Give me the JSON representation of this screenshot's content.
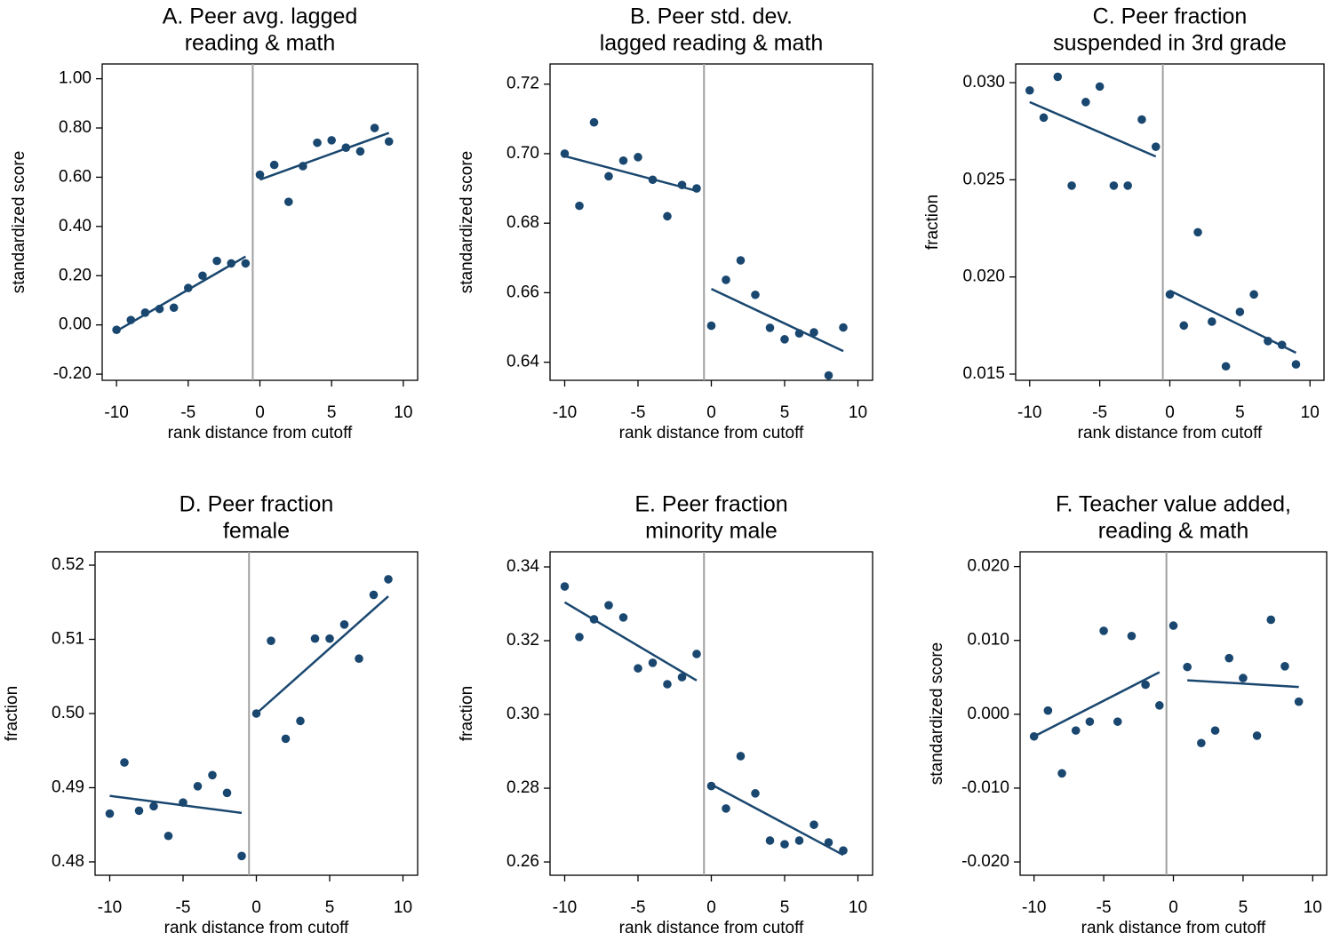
{
  "chart_data": [
    {
      "type": "scatter",
      "title": [
        "A. Peer avg. lagged",
        "reading & math"
      ],
      "xlabel": "rank distance from cutoff",
      "ylabel": "standardized score",
      "x": [
        -10,
        -9,
        -8,
        -7,
        -6,
        -5,
        -4,
        -3,
        -2,
        -1,
        0,
        1,
        2,
        3,
        4,
        5,
        6,
        7,
        8,
        9
      ],
      "values": [
        -0.02,
        0.02,
        0.05,
        0.065,
        0.07,
        0.15,
        0.2,
        0.26,
        0.25,
        0.25,
        0.61,
        0.65,
        0.5,
        0.645,
        0.74,
        0.75,
        0.72,
        0.705,
        0.8,
        0.745
      ],
      "fits": [
        {
          "x": [
            -10,
            -1
          ],
          "values": [
            -0.025,
            0.278
          ]
        },
        {
          "x": [
            0,
            9
          ],
          "values": [
            0.59,
            0.78
          ]
        }
      ],
      "cutoff": -0.5,
      "color": "#1a476f",
      "cutoff_color": "#a0a0a0",
      "xlim": [
        -11,
        11
      ],
      "xticks": [
        -10,
        -5,
        0,
        5,
        10
      ],
      "ylim": [
        -0.225,
        1.06
      ],
      "yticks": [
        {
          "value": -0.2,
          "label": "-0.20"
        },
        {
          "value": 0,
          "label": "0.00"
        },
        {
          "value": 0.2,
          "label": "0.20"
        },
        {
          "value": 0.4,
          "label": "0.40"
        },
        {
          "value": 0.6,
          "label": "0.60"
        },
        {
          "value": 0.8,
          "label": "0.80"
        },
        {
          "value": 1,
          "label": "1.00"
        }
      ]
    },
    {
      "type": "scatter",
      "title": [
        "B. Peer std. dev.",
        "lagged reading & math"
      ],
      "xlabel": "rank distance from cutoff",
      "ylabel": "standardized score",
      "x": [
        -10,
        -9,
        -8,
        -7,
        -6,
        -5,
        -4,
        -3,
        -2,
        -1,
        0,
        1,
        2,
        3,
        4,
        5,
        6,
        7,
        8,
        9
      ],
      "values": [
        0.7,
        0.685,
        0.709,
        0.6935,
        0.698,
        0.699,
        0.6925,
        0.682,
        0.691,
        0.69,
        0.6505,
        0.6637,
        0.6693,
        0.6594,
        0.6499,
        0.6466,
        0.6483,
        0.6486,
        0.6362,
        0.65
      ],
      "fits": [
        {
          "x": [
            -10,
            -1
          ],
          "values": [
            0.6993,
            0.6893
          ]
        },
        {
          "x": [
            0,
            9
          ],
          "values": [
            0.6611,
            0.6432
          ]
        }
      ],
      "cutoff": -0.5,
      "color": "#1a476f",
      "cutoff_color": "#a0a0a0",
      "xlim": [
        -11,
        11
      ],
      "xticks": [
        -10,
        -5,
        0,
        5,
        10
      ],
      "ylim": [
        0.6348,
        0.7258
      ],
      "yticks": [
        0.64,
        0.66,
        0.68,
        {
          "value": 0.7,
          "label": "0.70"
        },
        0.72
      ]
    },
    {
      "type": "scatter",
      "title": [
        "C. Peer fraction",
        "suspended in 3rd grade"
      ],
      "xlabel": "rank distance from cutoff",
      "ylabel": "fraction",
      "x": [
        -10,
        -9,
        -8,
        -7,
        -6,
        -5,
        -4,
        -3,
        -2,
        -1,
        0,
        1,
        2,
        3,
        4,
        5,
        6,
        7,
        8,
        9
      ],
      "values": [
        0.0296,
        0.0282,
        0.0303,
        0.0247,
        0.029,
        0.0298,
        0.0247,
        0.0247,
        0.0281,
        0.0267,
        0.0191,
        0.0175,
        0.0223,
        0.0177,
        0.0154,
        0.0182,
        0.0191,
        0.0167,
        0.0165,
        0.0155
      ],
      "fits": [
        {
          "x": [
            -10,
            -1
          ],
          "values": [
            0.029,
            0.0262
          ]
        },
        {
          "x": [
            0,
            9
          ],
          "values": [
            0.0193,
            0.0161
          ]
        }
      ],
      "cutoff": -0.5,
      "color": "#1a476f",
      "cutoff_color": "#a0a0a0",
      "xlim": [
        -11,
        11
      ],
      "xticks": [
        -10,
        -5,
        0,
        5,
        10
      ],
      "ylim": [
        0.01468,
        0.03096
      ],
      "yticks": [
        0.015,
        {
          "value": 0.02,
          "label": "0.020"
        },
        0.025,
        {
          "value": 0.03,
          "label": "0.030"
        }
      ]
    },
    {
      "type": "scatter",
      "title": [
        "D. Peer fraction",
        "female"
      ],
      "xlabel": "rank distance from cutoff",
      "ylabel": "fraction",
      "x": [
        -10,
        -9,
        -8,
        -7,
        -6,
        -5,
        -4,
        -3,
        -2,
        -1,
        0,
        1,
        2,
        3,
        4,
        5,
        6,
        7,
        8,
        9
      ],
      "values": [
        0.4865,
        0.4934,
        0.4869,
        0.4875,
        0.4835,
        0.488,
        0.4902,
        0.4917,
        0.4893,
        0.4808,
        0.5,
        0.5098,
        0.4966,
        0.499,
        0.5101,
        0.5101,
        0.512,
        0.5074,
        0.516,
        0.5181
      ],
      "fits": [
        {
          "x": [
            -10,
            -1
          ],
          "values": [
            0.4889,
            0.4866
          ]
        },
        {
          "x": [
            0,
            9
          ],
          "values": [
            0.5,
            0.5158
          ]
        }
      ],
      "cutoff": -0.5,
      "color": "#1a476f",
      "cutoff_color": "#a0a0a0",
      "xlim": [
        -11,
        11
      ],
      "xticks": [
        -10,
        -5,
        0,
        5,
        10
      ],
      "ylim": [
        0.4782,
        0.5218
      ],
      "yticks": [
        0.48,
        0.49,
        {
          "value": 0.5,
          "label": "0.50"
        },
        0.51,
        0.52
      ]
    },
    {
      "type": "scatter",
      "title": [
        "E. Peer fraction",
        "minority male"
      ],
      "xlabel": "rank distance from cutoff",
      "ylabel": "fraction",
      "x": [
        -10,
        -9,
        -8,
        -7,
        -6,
        -5,
        -4,
        -3,
        -2,
        -1,
        0,
        1,
        2,
        3,
        4,
        5,
        6,
        7,
        8,
        9
      ],
      "values": [
        0.3347,
        0.321,
        0.3258,
        0.3296,
        0.3263,
        0.3125,
        0.314,
        0.3082,
        0.3101,
        0.3164,
        0.2806,
        0.2745,
        0.2887,
        0.2786,
        0.2658,
        0.2648,
        0.2658,
        0.2701,
        0.2653,
        0.2631
      ],
      "fits": [
        {
          "x": [
            -10,
            -1
          ],
          "values": [
            0.3304,
            0.3092
          ]
        },
        {
          "x": [
            0,
            9
          ],
          "values": [
            0.281,
            0.2619
          ]
        }
      ],
      "cutoff": -0.5,
      "color": "#1a476f",
      "cutoff_color": "#a0a0a0",
      "xlim": [
        -11,
        11
      ],
      "xticks": [
        -10,
        -5,
        0,
        5,
        10
      ],
      "ylim": [
        0.2564,
        0.3441
      ],
      "yticks": [
        0.26,
        0.28,
        {
          "value": 0.3,
          "label": "0.30"
        },
        0.32,
        0.34
      ]
    },
    {
      "type": "scatter",
      "title": [
        "F. Teacher value added,",
        "reading & math"
      ],
      "xlabel": "rank distance from cutoff",
      "ylabel": "standardized score",
      "x": [
        -10,
        -9,
        -8,
        -7,
        -6,
        -5,
        -4,
        -3,
        -2,
        -1,
        0,
        1,
        2,
        3,
        4,
        5,
        6,
        7,
        8,
        9
      ],
      "values": [
        -0.003,
        0.0005,
        -0.008,
        -0.0022,
        -0.001,
        0.0113,
        -0.001,
        0.0106,
        0.004,
        0.0012,
        0.012,
        0.0064,
        -0.0039,
        -0.0022,
        0.0076,
        0.0049,
        -0.0029,
        0.0128,
        0.0065,
        0.0017
      ],
      "fits": [
        {
          "x": [
            -10,
            -1
          ],
          "values": [
            -0.003,
            0.0057
          ]
        },
        {
          "x": [
            1,
            9
          ],
          "values": [
            0.0046,
            0.0037
          ]
        }
      ],
      "cutoff": -0.5,
      "color": "#1a476f",
      "cutoff_color": "#a0a0a0",
      "xlim": [
        -11,
        11
      ],
      "xticks": [
        -10,
        -5,
        0,
        5,
        10
      ],
      "ylim": [
        -0.0218,
        0.022
      ],
      "yticks": [
        {
          "value": -0.02,
          "label": "-0.020"
        },
        {
          "value": -0.01,
          "label": "-0.010"
        },
        {
          "value": 0,
          "label": "0.000"
        },
        {
          "value": 0.01,
          "label": "0.010"
        },
        {
          "value": 0.02,
          "label": "0.020"
        }
      ]
    }
  ]
}
